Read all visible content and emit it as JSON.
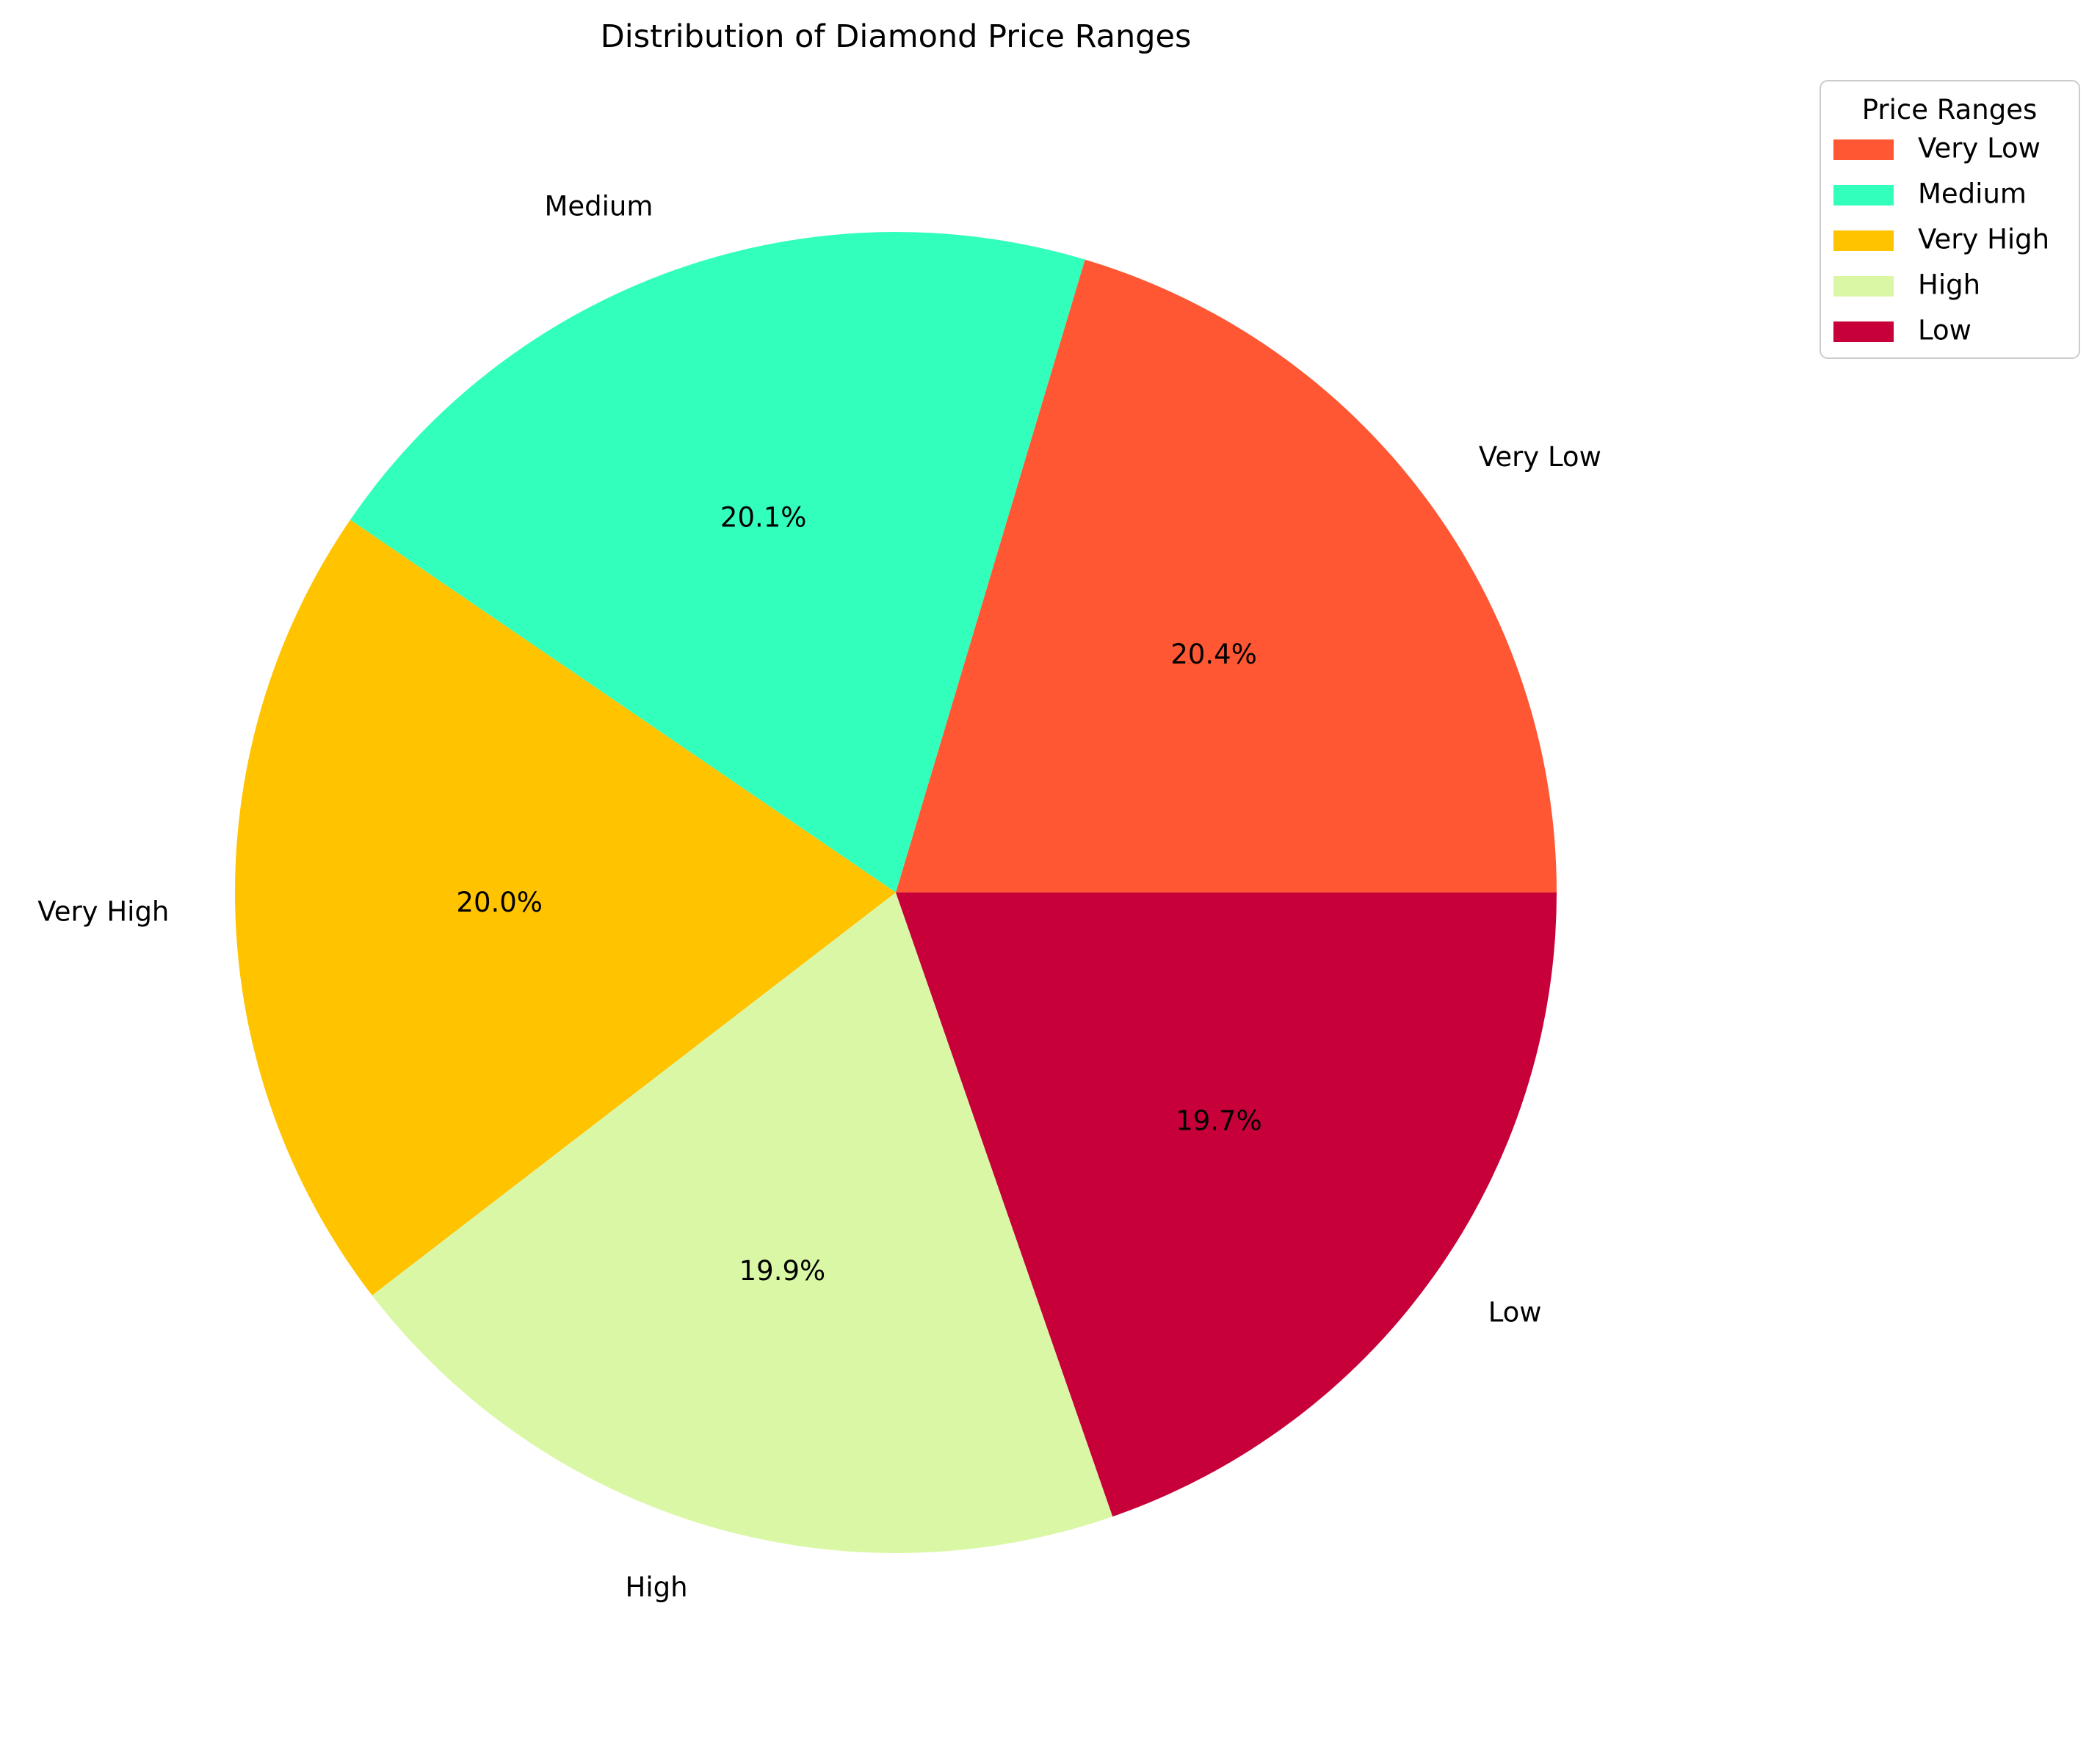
{
  "chart_data": {
    "type": "pie",
    "title": "Distribution of Diamond Price Ranges",
    "legend": {
      "title": "Price Ranges",
      "placement": "upper right, outside plot"
    },
    "start_angle_deg": 0,
    "direction": "counterclockwise",
    "slices": [
      {
        "label": "Very Low",
        "value": 20.4,
        "pct_label": "20.4%",
        "color": "#FF5733"
      },
      {
        "label": "Medium",
        "value": 20.1,
        "pct_label": "20.1%",
        "color": "#33FFBD"
      },
      {
        "label": "Very High",
        "value": 20.0,
        "pct_label": "20.0%",
        "color": "#FFC300"
      },
      {
        "label": "High",
        "value": 19.9,
        "pct_label": "19.9%",
        "color": "#DAF7A6"
      },
      {
        "label": "Low",
        "value": 19.7,
        "pct_label": "19.7%",
        "color": "#C70039"
      }
    ]
  }
}
